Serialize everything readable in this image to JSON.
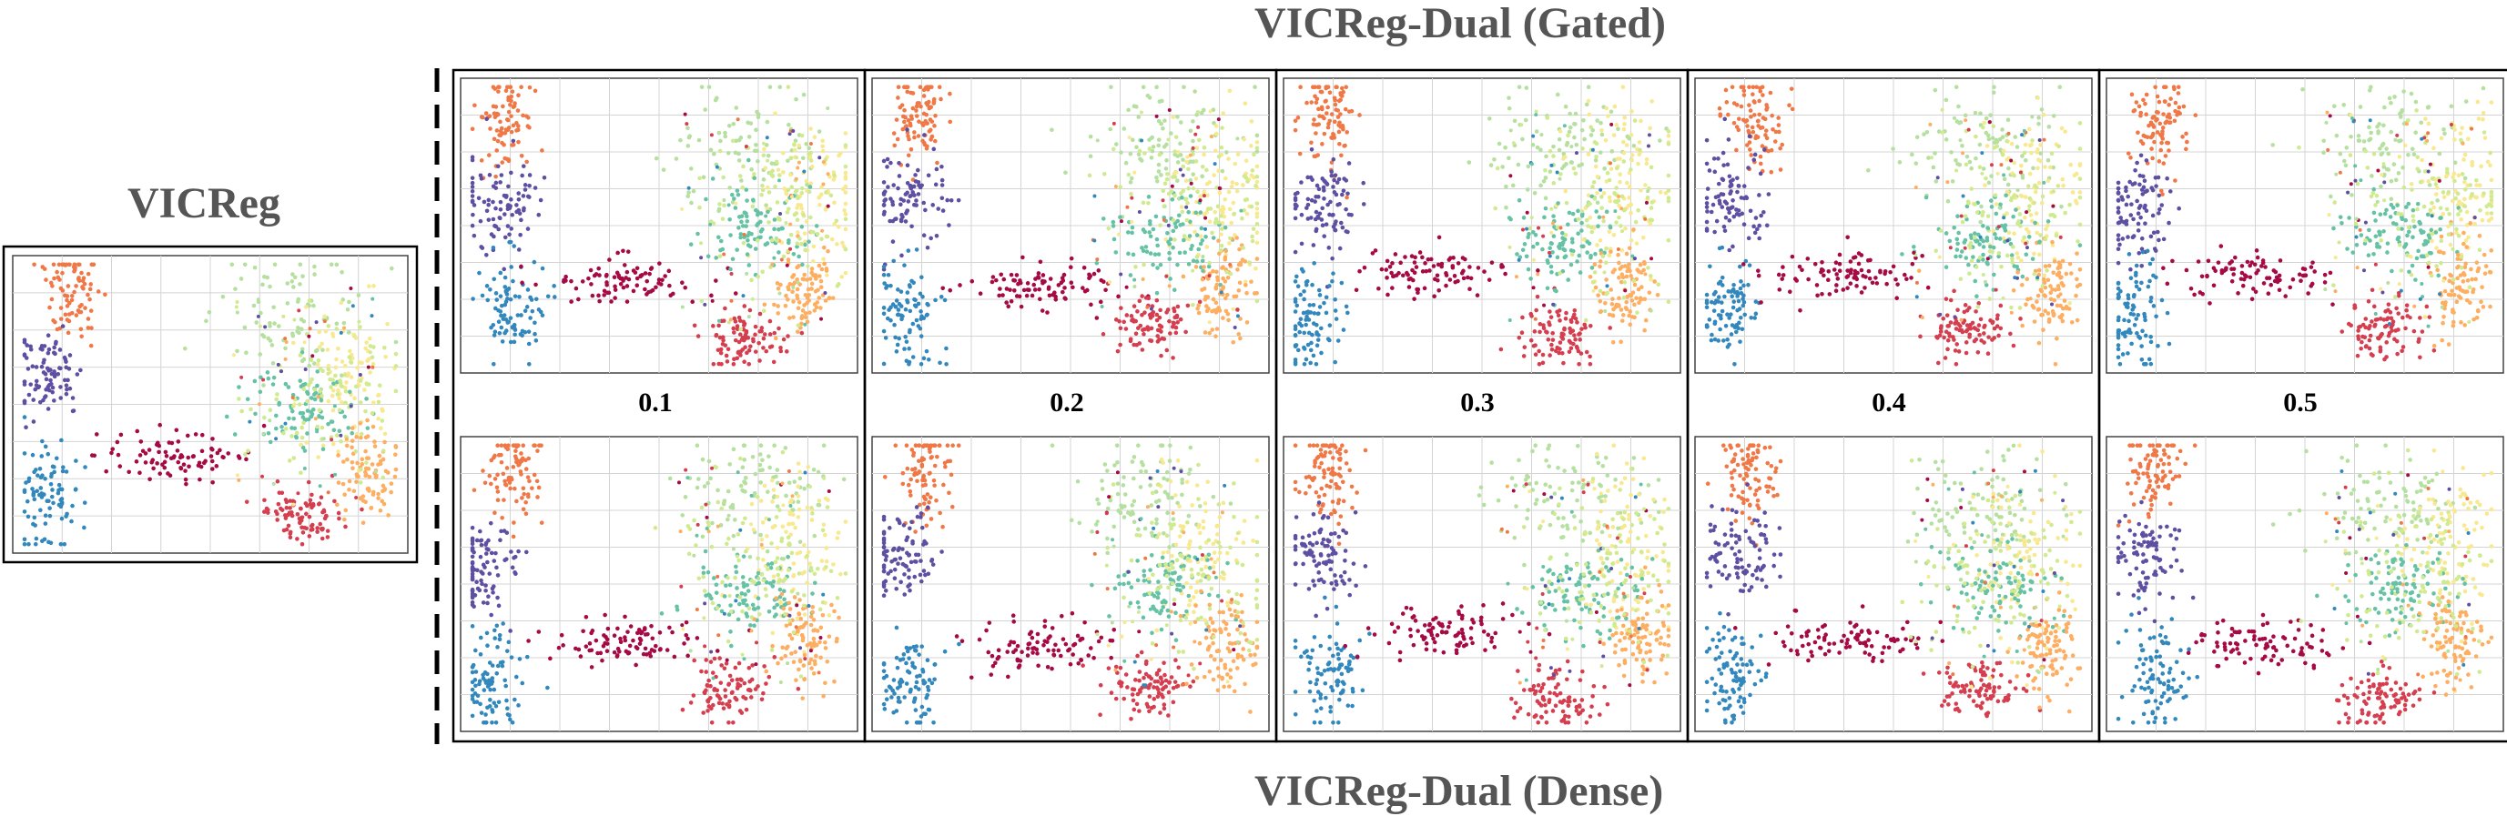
{
  "figure": {
    "title_left": "VICReg",
    "title_top": "VICReg-Dual (Gated)",
    "title_bottom": "VICReg-Dual (Dense)"
  },
  "columns": [
    {
      "param": "0.1"
    },
    {
      "param": "0.2"
    },
    {
      "param": "0.3"
    },
    {
      "param": "0.4"
    },
    {
      "param": "0.5"
    }
  ],
  "rows": [
    "gated",
    "dense"
  ],
  "chart_data": {
    "type": "scatter",
    "description_values": "UMAP embeddings coloured by 10 classes; no axis tick labels shown",
    "panels": [
      "VICReg",
      "Gated 0.1",
      "Gated 0.2",
      "Gated 0.3",
      "Gated 0.4",
      "Gated 0.5",
      "Dense 0.1",
      "Dense 0.2",
      "Dense 0.3",
      "Dense 0.4",
      "Dense 0.5"
    ],
    "clusters": [
      {
        "cls": "orange",
        "color": "#f07846",
        "center": [
          0.14,
          0.12
        ],
        "spread": [
          0.035,
          0.09
        ]
      },
      {
        "cls": "purple",
        "color": "#5e4fa2",
        "center": [
          0.08,
          0.42
        ],
        "spread": [
          0.045,
          0.08
        ]
      },
      {
        "cls": "blue",
        "color": "#3288bd",
        "center": [
          0.1,
          0.8
        ],
        "spread": [
          0.04,
          0.09
        ]
      },
      {
        "cls": "crimson",
        "color": "#a50a44",
        "center": [
          0.4,
          0.68
        ],
        "spread": [
          0.1,
          0.04
        ]
      },
      {
        "cls": "red",
        "color": "#d53e4f",
        "center": [
          0.7,
          0.86
        ],
        "spread": [
          0.05,
          0.05
        ]
      },
      {
        "cls": "lightgreen",
        "color": "#b5e0a0",
        "center": [
          0.72,
          0.22
        ],
        "spread": [
          0.1,
          0.1
        ]
      },
      {
        "cls": "paleyellow",
        "color": "#f8e890",
        "center": [
          0.86,
          0.38
        ],
        "spread": [
          0.06,
          0.14
        ]
      },
      {
        "cls": "teal",
        "color": "#66c2a5",
        "center": [
          0.74,
          0.52
        ],
        "spread": [
          0.07,
          0.07
        ]
      },
      {
        "cls": "lightorange",
        "color": "#fdae61",
        "center": [
          0.88,
          0.7
        ],
        "spread": [
          0.04,
          0.08
        ]
      },
      {
        "cls": "yellowgreen",
        "color": "#d0ea90",
        "center": [
          0.8,
          0.45
        ],
        "spread": [
          0.1,
          0.14
        ]
      }
    ]
  }
}
